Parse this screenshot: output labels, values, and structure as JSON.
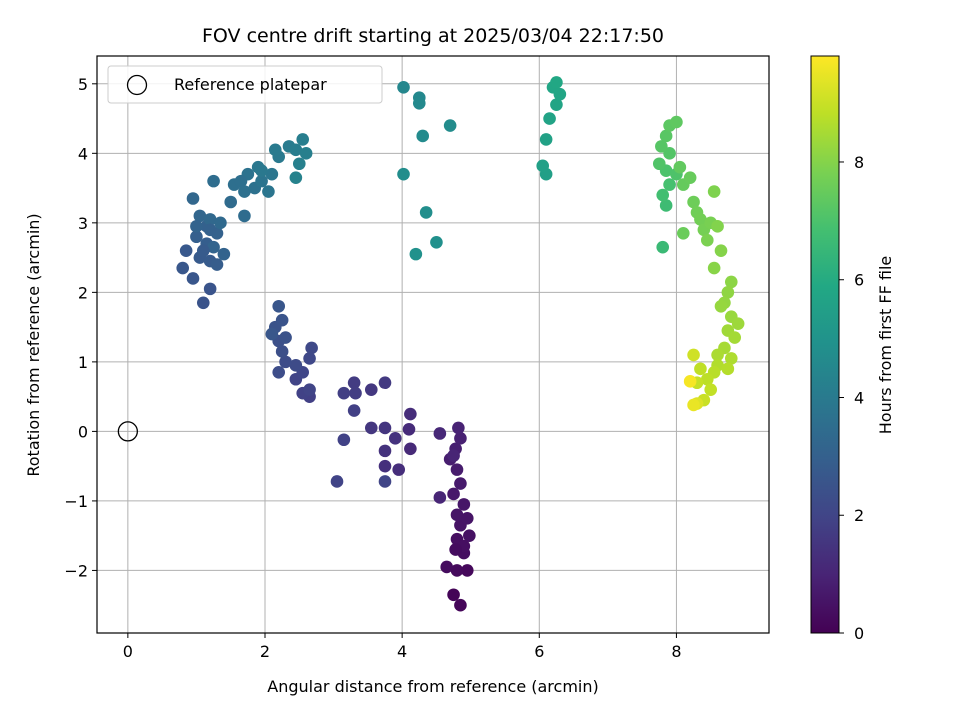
{
  "chart_data": {
    "type": "scatter",
    "title": "FOV centre drift starting at 2025/03/04 22:17:50",
    "xlabel": "Angular distance from reference (arcmin)",
    "ylabel": "Rotation from reference (arcmin)",
    "xlim": [
      -0.45,
      9.35
    ],
    "ylim": [
      -2.9,
      5.4
    ],
    "xticks": [
      "0",
      "2",
      "4",
      "6",
      "8"
    ],
    "yticks": [
      "−2",
      "−1",
      "0",
      "1",
      "2",
      "3",
      "4",
      "5"
    ],
    "grid": true,
    "legend": {
      "placement": "top-left",
      "label": "Reference platepar"
    },
    "reference_point": {
      "x": 0,
      "y": 0
    },
    "colorbar": {
      "label": "Hours from first FF file",
      "range": [
        0,
        9.8
      ],
      "ticks": [
        "0",
        "2",
        "4",
        "6",
        "8"
      ],
      "colormap": "viridis"
    },
    "points": [
      {
        "x": 4.75,
        "y": -2.35,
        "h": 0.1
      },
      {
        "x": 4.85,
        "y": -2.5,
        "h": 0.15
      },
      {
        "x": 4.95,
        "y": -2.0,
        "h": 0.2
      },
      {
        "x": 4.8,
        "y": -2.0,
        "h": 0.25
      },
      {
        "x": 4.65,
        "y": -1.95,
        "h": 0.3
      },
      {
        "x": 4.9,
        "y": -1.75,
        "h": 0.35
      },
      {
        "x": 4.8,
        "y": -1.55,
        "h": 0.4
      },
      {
        "x": 4.98,
        "y": -1.5,
        "h": 0.45
      },
      {
        "x": 4.85,
        "y": -1.35,
        "h": 0.5
      },
      {
        "x": 4.8,
        "y": -1.2,
        "h": 0.55
      },
      {
        "x": 4.9,
        "y": -1.05,
        "h": 0.6
      },
      {
        "x": 4.75,
        "y": -0.9,
        "h": 0.65
      },
      {
        "x": 4.85,
        "y": -0.75,
        "h": 0.7
      },
      {
        "x": 4.8,
        "y": -0.55,
        "h": 0.75
      },
      {
        "x": 4.7,
        "y": -0.4,
        "h": 0.8
      },
      {
        "x": 4.78,
        "y": -0.25,
        "h": 0.85
      },
      {
        "x": 4.85,
        "y": -0.1,
        "h": 0.9
      },
      {
        "x": 4.82,
        "y": 0.05,
        "h": 0.95
      },
      {
        "x": 4.75,
        "y": -0.35,
        "h": 1.0
      },
      {
        "x": 4.55,
        "y": -0.95,
        "h": 1.05
      },
      {
        "x": 4.55,
        "y": -0.03,
        "h": 1.1
      },
      {
        "x": 4.9,
        "y": -1.65,
        "h": 0.38
      },
      {
        "x": 4.95,
        "y": -1.25,
        "h": 0.52
      },
      {
        "x": 4.78,
        "y": -1.7,
        "h": 0.32
      },
      {
        "x": 4.12,
        "y": -0.25,
        "h": 1.15
      },
      {
        "x": 4.1,
        "y": 0.03,
        "h": 1.2
      },
      {
        "x": 4.12,
        "y": 0.25,
        "h": 1.25
      },
      {
        "x": 3.95,
        "y": -0.55,
        "h": 1.3
      },
      {
        "x": 3.75,
        "y": -0.5,
        "h": 1.35
      },
      {
        "x": 3.75,
        "y": -0.28,
        "h": 1.4
      },
      {
        "x": 3.9,
        "y": -0.1,
        "h": 1.45
      },
      {
        "x": 3.75,
        "y": 0.05,
        "h": 1.5
      },
      {
        "x": 3.55,
        "y": 0.05,
        "h": 1.55
      },
      {
        "x": 3.55,
        "y": 0.6,
        "h": 1.6
      },
      {
        "x": 3.75,
        "y": 0.7,
        "h": 1.65
      },
      {
        "x": 3.3,
        "y": 0.7,
        "h": 1.7
      },
      {
        "x": 3.32,
        "y": 0.55,
        "h": 1.75
      },
      {
        "x": 3.15,
        "y": 0.55,
        "h": 1.8
      },
      {
        "x": 3.3,
        "y": 0.3,
        "h": 1.85
      },
      {
        "x": 3.15,
        "y": -0.12,
        "h": 1.9
      },
      {
        "x": 3.05,
        "y": -0.72,
        "h": 1.95
      },
      {
        "x": 3.75,
        "y": -0.72,
        "h": 2.0
      },
      {
        "x": 2.65,
        "y": 0.5,
        "h": 1.85
      },
      {
        "x": 2.55,
        "y": 0.55,
        "h": 1.9
      },
      {
        "x": 2.45,
        "y": 0.75,
        "h": 1.95
      },
      {
        "x": 2.65,
        "y": 0.6,
        "h": 2.0
      },
      {
        "x": 2.55,
        "y": 0.85,
        "h": 2.05
      },
      {
        "x": 2.65,
        "y": 1.05,
        "h": 2.1
      },
      {
        "x": 2.68,
        "y": 1.2,
        "h": 2.15
      },
      {
        "x": 2.45,
        "y": 0.95,
        "h": 2.2
      },
      {
        "x": 2.3,
        "y": 1.0,
        "h": 2.25
      },
      {
        "x": 2.2,
        "y": 0.85,
        "h": 2.3
      },
      {
        "x": 2.25,
        "y": 1.15,
        "h": 2.35
      },
      {
        "x": 2.2,
        "y": 1.3,
        "h": 2.4
      },
      {
        "x": 2.3,
        "y": 1.35,
        "h": 2.45
      },
      {
        "x": 2.15,
        "y": 1.5,
        "h": 2.5
      },
      {
        "x": 2.25,
        "y": 1.6,
        "h": 2.55
      },
      {
        "x": 2.2,
        "y": 1.8,
        "h": 2.6
      },
      {
        "x": 2.1,
        "y": 1.4,
        "h": 2.65
      },
      {
        "x": 1.1,
        "y": 1.85,
        "h": 2.5
      },
      {
        "x": 1.2,
        "y": 2.05,
        "h": 2.55
      },
      {
        "x": 0.95,
        "y": 2.2,
        "h": 2.6
      },
      {
        "x": 0.8,
        "y": 2.35,
        "h": 2.65
      },
      {
        "x": 0.85,
        "y": 2.6,
        "h": 2.7
      },
      {
        "x": 1.05,
        "y": 2.5,
        "h": 2.75
      },
      {
        "x": 1.2,
        "y": 2.45,
        "h": 2.8
      },
      {
        "x": 1.3,
        "y": 2.4,
        "h": 2.85
      },
      {
        "x": 1.15,
        "y": 2.7,
        "h": 2.9
      },
      {
        "x": 1.0,
        "y": 2.8,
        "h": 2.95
      },
      {
        "x": 1.15,
        "y": 2.95,
        "h": 3.0
      },
      {
        "x": 1.3,
        "y": 2.85,
        "h": 3.05
      },
      {
        "x": 1.4,
        "y": 2.55,
        "h": 3.1
      },
      {
        "x": 1.25,
        "y": 2.65,
        "h": 3.15
      },
      {
        "x": 1.05,
        "y": 3.1,
        "h": 3.2
      },
      {
        "x": 0.95,
        "y": 3.35,
        "h": 3.25
      },
      {
        "x": 1.2,
        "y": 3.05,
        "h": 3.3
      },
      {
        "x": 1.35,
        "y": 3.0,
        "h": 3.35
      },
      {
        "x": 1.5,
        "y": 3.3,
        "h": 3.4
      },
      {
        "x": 1.7,
        "y": 3.1,
        "h": 3.45
      },
      {
        "x": 1.25,
        "y": 3.6,
        "h": 3.5
      },
      {
        "x": 1.55,
        "y": 3.55,
        "h": 3.55
      },
      {
        "x": 1.7,
        "y": 3.45,
        "h": 3.6
      },
      {
        "x": 1.85,
        "y": 3.5,
        "h": 3.65
      },
      {
        "x": 1.75,
        "y": 3.7,
        "h": 3.7
      },
      {
        "x": 1.95,
        "y": 3.6,
        "h": 3.75
      },
      {
        "x": 2.05,
        "y": 3.45,
        "h": 3.8
      },
      {
        "x": 2.1,
        "y": 3.7,
        "h": 3.85
      },
      {
        "x": 1.9,
        "y": 3.8,
        "h": 3.9
      },
      {
        "x": 1.95,
        "y": 3.75,
        "h": 3.92
      },
      {
        "x": 2.2,
        "y": 3.95,
        "h": 3.95
      },
      {
        "x": 2.15,
        "y": 4.05,
        "h": 4.0
      },
      {
        "x": 2.35,
        "y": 4.1,
        "h": 4.05
      },
      {
        "x": 2.45,
        "y": 4.05,
        "h": 4.1
      },
      {
        "x": 2.55,
        "y": 4.2,
        "h": 4.15
      },
      {
        "x": 2.6,
        "y": 4.0,
        "h": 4.2
      },
      {
        "x": 2.5,
        "y": 3.85,
        "h": 4.25
      },
      {
        "x": 2.45,
        "y": 3.65,
        "h": 4.3
      },
      {
        "x": 1.65,
        "y": 3.6,
        "h": 3.58
      },
      {
        "x": 1.0,
        "y": 2.95,
        "h": 3.08
      },
      {
        "x": 1.1,
        "y": 2.6,
        "h": 2.78
      },
      {
        "x": 1.2,
        "y": 2.9,
        "h": 3.02
      },
      {
        "x": 4.02,
        "y": 4.95,
        "h": 4.5
      },
      {
        "x": 4.25,
        "y": 4.8,
        "h": 4.55
      },
      {
        "x": 4.25,
        "y": 4.72,
        "h": 4.6
      },
      {
        "x": 4.3,
        "y": 4.25,
        "h": 4.65
      },
      {
        "x": 4.7,
        "y": 4.4,
        "h": 4.7
      },
      {
        "x": 4.02,
        "y": 3.7,
        "h": 4.75
      },
      {
        "x": 4.35,
        "y": 3.15,
        "h": 4.8
      },
      {
        "x": 4.5,
        "y": 2.72,
        "h": 4.85
      },
      {
        "x": 4.2,
        "y": 2.55,
        "h": 4.9
      },
      {
        "x": 6.1,
        "y": 3.7,
        "h": 5.5
      },
      {
        "x": 6.05,
        "y": 3.82,
        "h": 5.55
      },
      {
        "x": 6.1,
        "y": 4.2,
        "h": 5.6
      },
      {
        "x": 6.15,
        "y": 4.5,
        "h": 5.65
      },
      {
        "x": 6.25,
        "y": 4.7,
        "h": 5.7
      },
      {
        "x": 6.3,
        "y": 4.85,
        "h": 5.75
      },
      {
        "x": 6.2,
        "y": 4.95,
        "h": 5.8
      },
      {
        "x": 6.25,
        "y": 5.02,
        "h": 5.85
      },
      {
        "x": 7.8,
        "y": 2.65,
        "h": 6.6
      },
      {
        "x": 7.85,
        "y": 3.25,
        "h": 6.7
      },
      {
        "x": 7.8,
        "y": 3.4,
        "h": 6.8
      },
      {
        "x": 7.9,
        "y": 3.55,
        "h": 6.9
      },
      {
        "x": 7.85,
        "y": 3.75,
        "h": 7.0
      },
      {
        "x": 8.0,
        "y": 3.7,
        "h": 7.05
      },
      {
        "x": 7.75,
        "y": 3.85,
        "h": 7.1
      },
      {
        "x": 7.9,
        "y": 4.0,
        "h": 7.15
      },
      {
        "x": 7.78,
        "y": 4.1,
        "h": 7.2
      },
      {
        "x": 7.85,
        "y": 4.25,
        "h": 7.25
      },
      {
        "x": 7.9,
        "y": 4.4,
        "h": 7.3
      },
      {
        "x": 8.0,
        "y": 4.45,
        "h": 7.35
      },
      {
        "x": 8.05,
        "y": 3.8,
        "h": 7.4
      },
      {
        "x": 8.1,
        "y": 3.55,
        "h": 7.45
      },
      {
        "x": 8.2,
        "y": 3.65,
        "h": 7.5
      },
      {
        "x": 8.1,
        "y": 2.85,
        "h": 7.55
      },
      {
        "x": 8.25,
        "y": 3.3,
        "h": 7.6
      },
      {
        "x": 8.3,
        "y": 3.15,
        "h": 7.65
      },
      {
        "x": 8.35,
        "y": 3.05,
        "h": 7.7
      },
      {
        "x": 8.4,
        "y": 2.9,
        "h": 7.75
      },
      {
        "x": 8.5,
        "y": 3.0,
        "h": 7.8
      },
      {
        "x": 8.45,
        "y": 2.75,
        "h": 7.85
      },
      {
        "x": 8.55,
        "y": 3.45,
        "h": 7.9
      },
      {
        "x": 8.6,
        "y": 2.95,
        "h": 7.95
      },
      {
        "x": 8.65,
        "y": 2.6,
        "h": 8.0
      },
      {
        "x": 8.55,
        "y": 2.35,
        "h": 8.05
      },
      {
        "x": 8.8,
        "y": 2.15,
        "h": 8.1
      },
      {
        "x": 8.75,
        "y": 2.0,
        "h": 8.15
      },
      {
        "x": 8.7,
        "y": 1.85,
        "h": 8.2
      },
      {
        "x": 8.65,
        "y": 1.8,
        "h": 8.25
      },
      {
        "x": 8.8,
        "y": 1.65,
        "h": 8.3
      },
      {
        "x": 8.9,
        "y": 1.55,
        "h": 8.35
      },
      {
        "x": 8.75,
        "y": 1.45,
        "h": 8.4
      },
      {
        "x": 8.85,
        "y": 1.35,
        "h": 8.45
      },
      {
        "x": 8.7,
        "y": 1.2,
        "h": 8.5
      },
      {
        "x": 8.6,
        "y": 1.1,
        "h": 8.55
      },
      {
        "x": 8.8,
        "y": 1.05,
        "h": 8.6
      },
      {
        "x": 8.6,
        "y": 0.95,
        "h": 8.65
      },
      {
        "x": 8.75,
        "y": 0.9,
        "h": 8.7
      },
      {
        "x": 8.55,
        "y": 0.85,
        "h": 8.75
      },
      {
        "x": 8.45,
        "y": 0.75,
        "h": 8.8
      },
      {
        "x": 8.35,
        "y": 0.9,
        "h": 8.85
      },
      {
        "x": 8.5,
        "y": 0.6,
        "h": 8.9
      },
      {
        "x": 8.3,
        "y": 0.7,
        "h": 8.95
      },
      {
        "x": 8.4,
        "y": 0.45,
        "h": 9.0
      },
      {
        "x": 8.25,
        "y": 1.1,
        "h": 9.1
      },
      {
        "x": 8.3,
        "y": 0.4,
        "h": 9.3
      },
      {
        "x": 8.25,
        "y": 0.38,
        "h": 9.5
      },
      {
        "x": 8.2,
        "y": 0.72,
        "h": 9.7
      }
    ]
  }
}
